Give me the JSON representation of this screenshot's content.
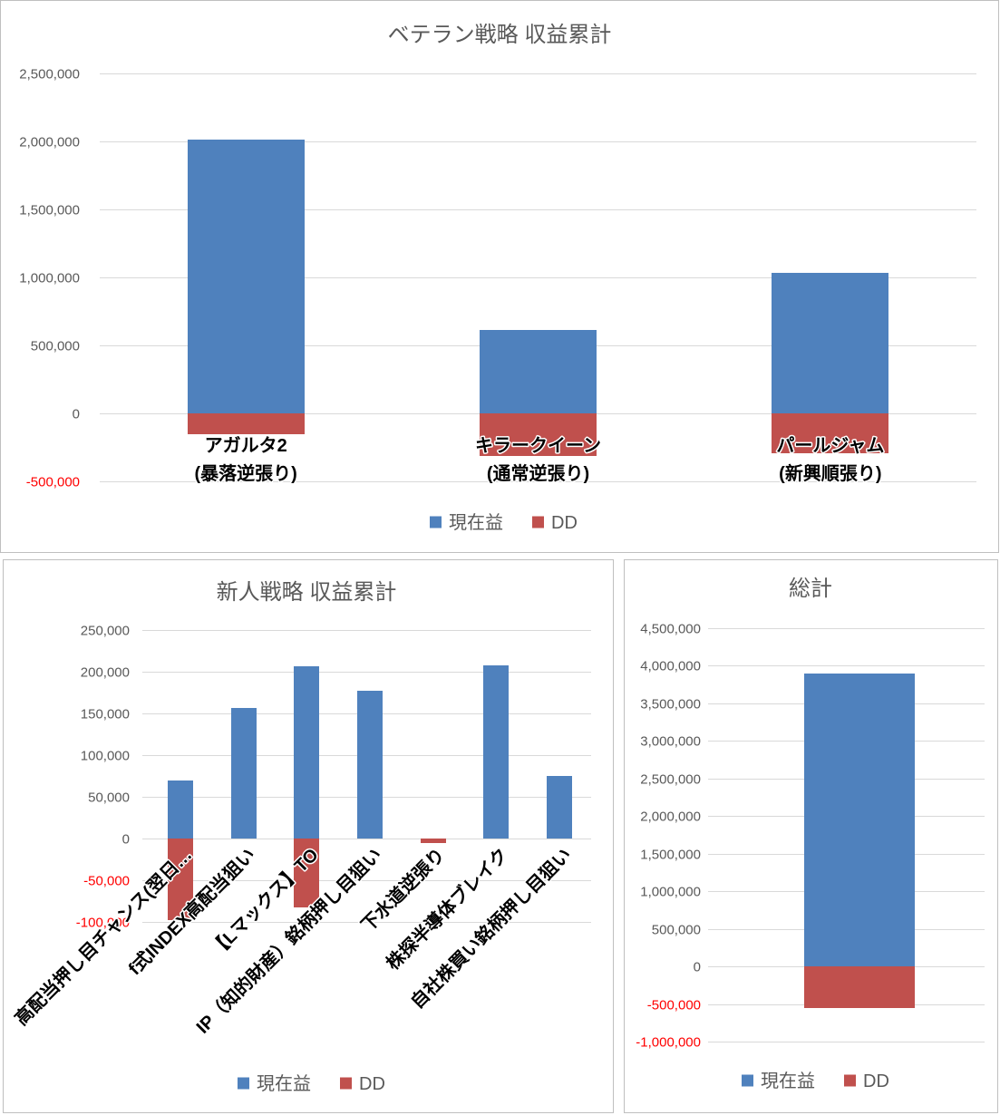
{
  "colors": {
    "text": "#595959",
    "gridline": "#D9D9D9",
    "negative_tick": "#FF0000",
    "category_label": "#000000"
  },
  "chart_data": [
    {
      "type": "bar",
      "stacked": true,
      "title": "ベテラン戦略 収益累計",
      "categories": [
        [
          "アガルタ2",
          "(暴落逆張り)"
        ],
        [
          "キラークイーン",
          "(通常逆張り)"
        ],
        [
          "パールジャム",
          "(新興順張り)"
        ]
      ],
      "series": [
        {
          "name": "現在益",
          "color": "#4F81BD",
          "values": [
            2010000,
            610000,
            1030000
          ]
        },
        {
          "name": "DD",
          "color": "#C0504D",
          "values": [
            -150000,
            -310000,
            -290000
          ]
        }
      ],
      "ylim": [
        -500000,
        2500000
      ],
      "yticks": [
        {
          "value": 2500000,
          "label": "2,500,000"
        },
        {
          "value": 2000000,
          "label": "2,000,000"
        },
        {
          "value": 1500000,
          "label": "1,500,000"
        },
        {
          "value": 1000000,
          "label": "1,000,000"
        },
        {
          "value": 500000,
          "label": "500,000"
        },
        {
          "value": 0,
          "label": "0"
        },
        {
          "value": -500000,
          "label": "-500,000"
        }
      ],
      "grid": true,
      "legend": "bottom"
    },
    {
      "type": "bar",
      "stacked": true,
      "title": "新人戦略 収益累計",
      "categories": [
        "高配当押し目チャンス(翌日…",
        "f式INDEX高配当狙い",
        "【Lマックス】TO",
        "IP（知的財産）銘柄押し目狙い",
        "下水道逆張り",
        "株探半導体ブレイク",
        "自社株買い銘柄押し目狙い"
      ],
      "series": [
        {
          "name": "現在益",
          "color": "#4F81BD",
          "values": [
            70000,
            157000,
            207000,
            177000,
            0,
            208000,
            75000
          ]
        },
        {
          "name": "DD",
          "color": "#C0504D",
          "values": [
            -98000,
            0,
            -83000,
            0,
            -5000,
            0,
            0
          ]
        }
      ],
      "ylim": [
        -100000,
        250000
      ],
      "yticks": [
        {
          "value": 250000,
          "label": "250,000"
        },
        {
          "value": 200000,
          "label": "200,000"
        },
        {
          "value": 150000,
          "label": "150,000"
        },
        {
          "value": 100000,
          "label": "100,000"
        },
        {
          "value": 50000,
          "label": "50,000"
        },
        {
          "value": 0,
          "label": "0"
        },
        {
          "value": -50000,
          "label": "-50,000"
        },
        {
          "value": -100000,
          "label": "-100,000"
        }
      ],
      "grid": true,
      "legend": "bottom"
    },
    {
      "type": "bar",
      "stacked": true,
      "title": "総計",
      "series": [
        {
          "name": "現在益",
          "color": "#4F81BD",
          "values": [
            3890000
          ]
        },
        {
          "name": "DD",
          "color": "#C0504D",
          "values": [
            -550000
          ]
        }
      ],
      "ylim": [
        -1000000,
        4500000
      ],
      "yticks": [
        {
          "value": 4500000,
          "label": "4,500,000"
        },
        {
          "value": 4000000,
          "label": "4,000,000"
        },
        {
          "value": 3500000,
          "label": "3,500,000"
        },
        {
          "value": 3000000,
          "label": "3,000,000"
        },
        {
          "value": 2500000,
          "label": "2,500,000"
        },
        {
          "value": 2000000,
          "label": "2,000,000"
        },
        {
          "value": 1500000,
          "label": "1,500,000"
        },
        {
          "value": 1000000,
          "label": "1,000,000"
        },
        {
          "value": 500000,
          "label": "500,000"
        },
        {
          "value": 0,
          "label": "0"
        },
        {
          "value": -500000,
          "label": "-500,000"
        },
        {
          "value": -1000000,
          "label": "-1,000,000"
        }
      ],
      "grid": true,
      "legend": "bottom"
    }
  ]
}
